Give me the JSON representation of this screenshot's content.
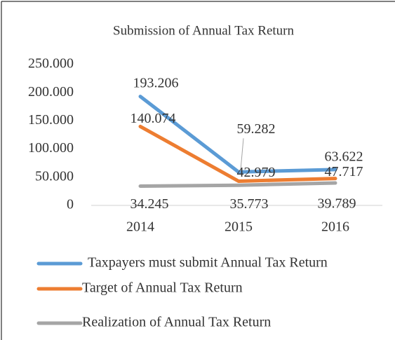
{
  "chart_data": {
    "type": "line",
    "title": "Submission of Annual  Tax Return",
    "categories": [
      "2014",
      "2015",
      "2016"
    ],
    "series": [
      {
        "name": "Taxpayers must submit Annual Tax Return",
        "color": "#5b9bd5",
        "values": [
          193206,
          59282,
          63622
        ],
        "value_labels": [
          "193.206",
          "59.282",
          "63.622"
        ]
      },
      {
        "name": "Target of Annual Tax Return",
        "color": "#ed7d31",
        "values": [
          140074,
          42979,
          47717
        ],
        "value_labels": [
          "140.074",
          "42.979",
          "47.717"
        ]
      },
      {
        "name": "Realization of Annual Tax Return",
        "color": "#a5a5a5",
        "values": [
          34245,
          35773,
          39789
        ],
        "value_labels": [
          "34.245",
          "35.773",
          "39.789"
        ]
      }
    ],
    "ylim": [
      0,
      250000
    ],
    "yticks": [
      0,
      {
        "value": 50000,
        "label": "50.000"
      },
      {
        "value": 100000,
        "label": "100.000"
      },
      {
        "value": 150000,
        "label": "150.000"
      },
      {
        "value": 200000,
        "label": "200.000"
      },
      {
        "value": 250000,
        "label": "250.000"
      }
    ],
    "grid": false,
    "legend": "bottom"
  }
}
